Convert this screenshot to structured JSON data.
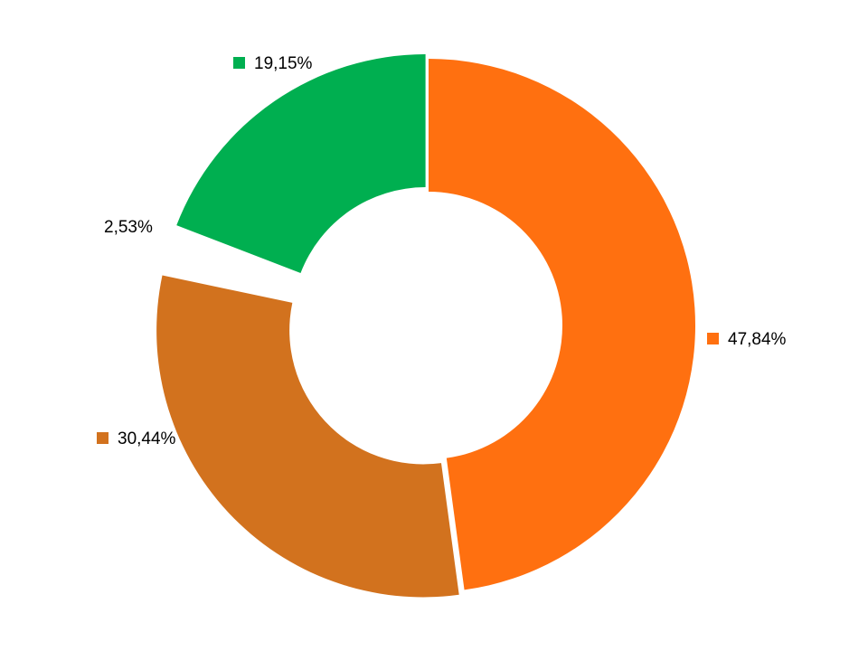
{
  "chart_data": {
    "type": "pie",
    "variant": "doughnut",
    "legend": "none",
    "slices": [
      {
        "value": 47.84,
        "label": "47,84%",
        "color": "#FF7010",
        "marker": true
      },
      {
        "value": 30.44,
        "label": "30,44%",
        "color": "#D2721E",
        "marker": true
      },
      {
        "value": 2.53,
        "label": "2,53%",
        "color": "#FFFFFF",
        "marker": false
      },
      {
        "value": 19.15,
        "label": "19,15%",
        "color": "#00AF50",
        "marker": true
      }
    ]
  }
}
